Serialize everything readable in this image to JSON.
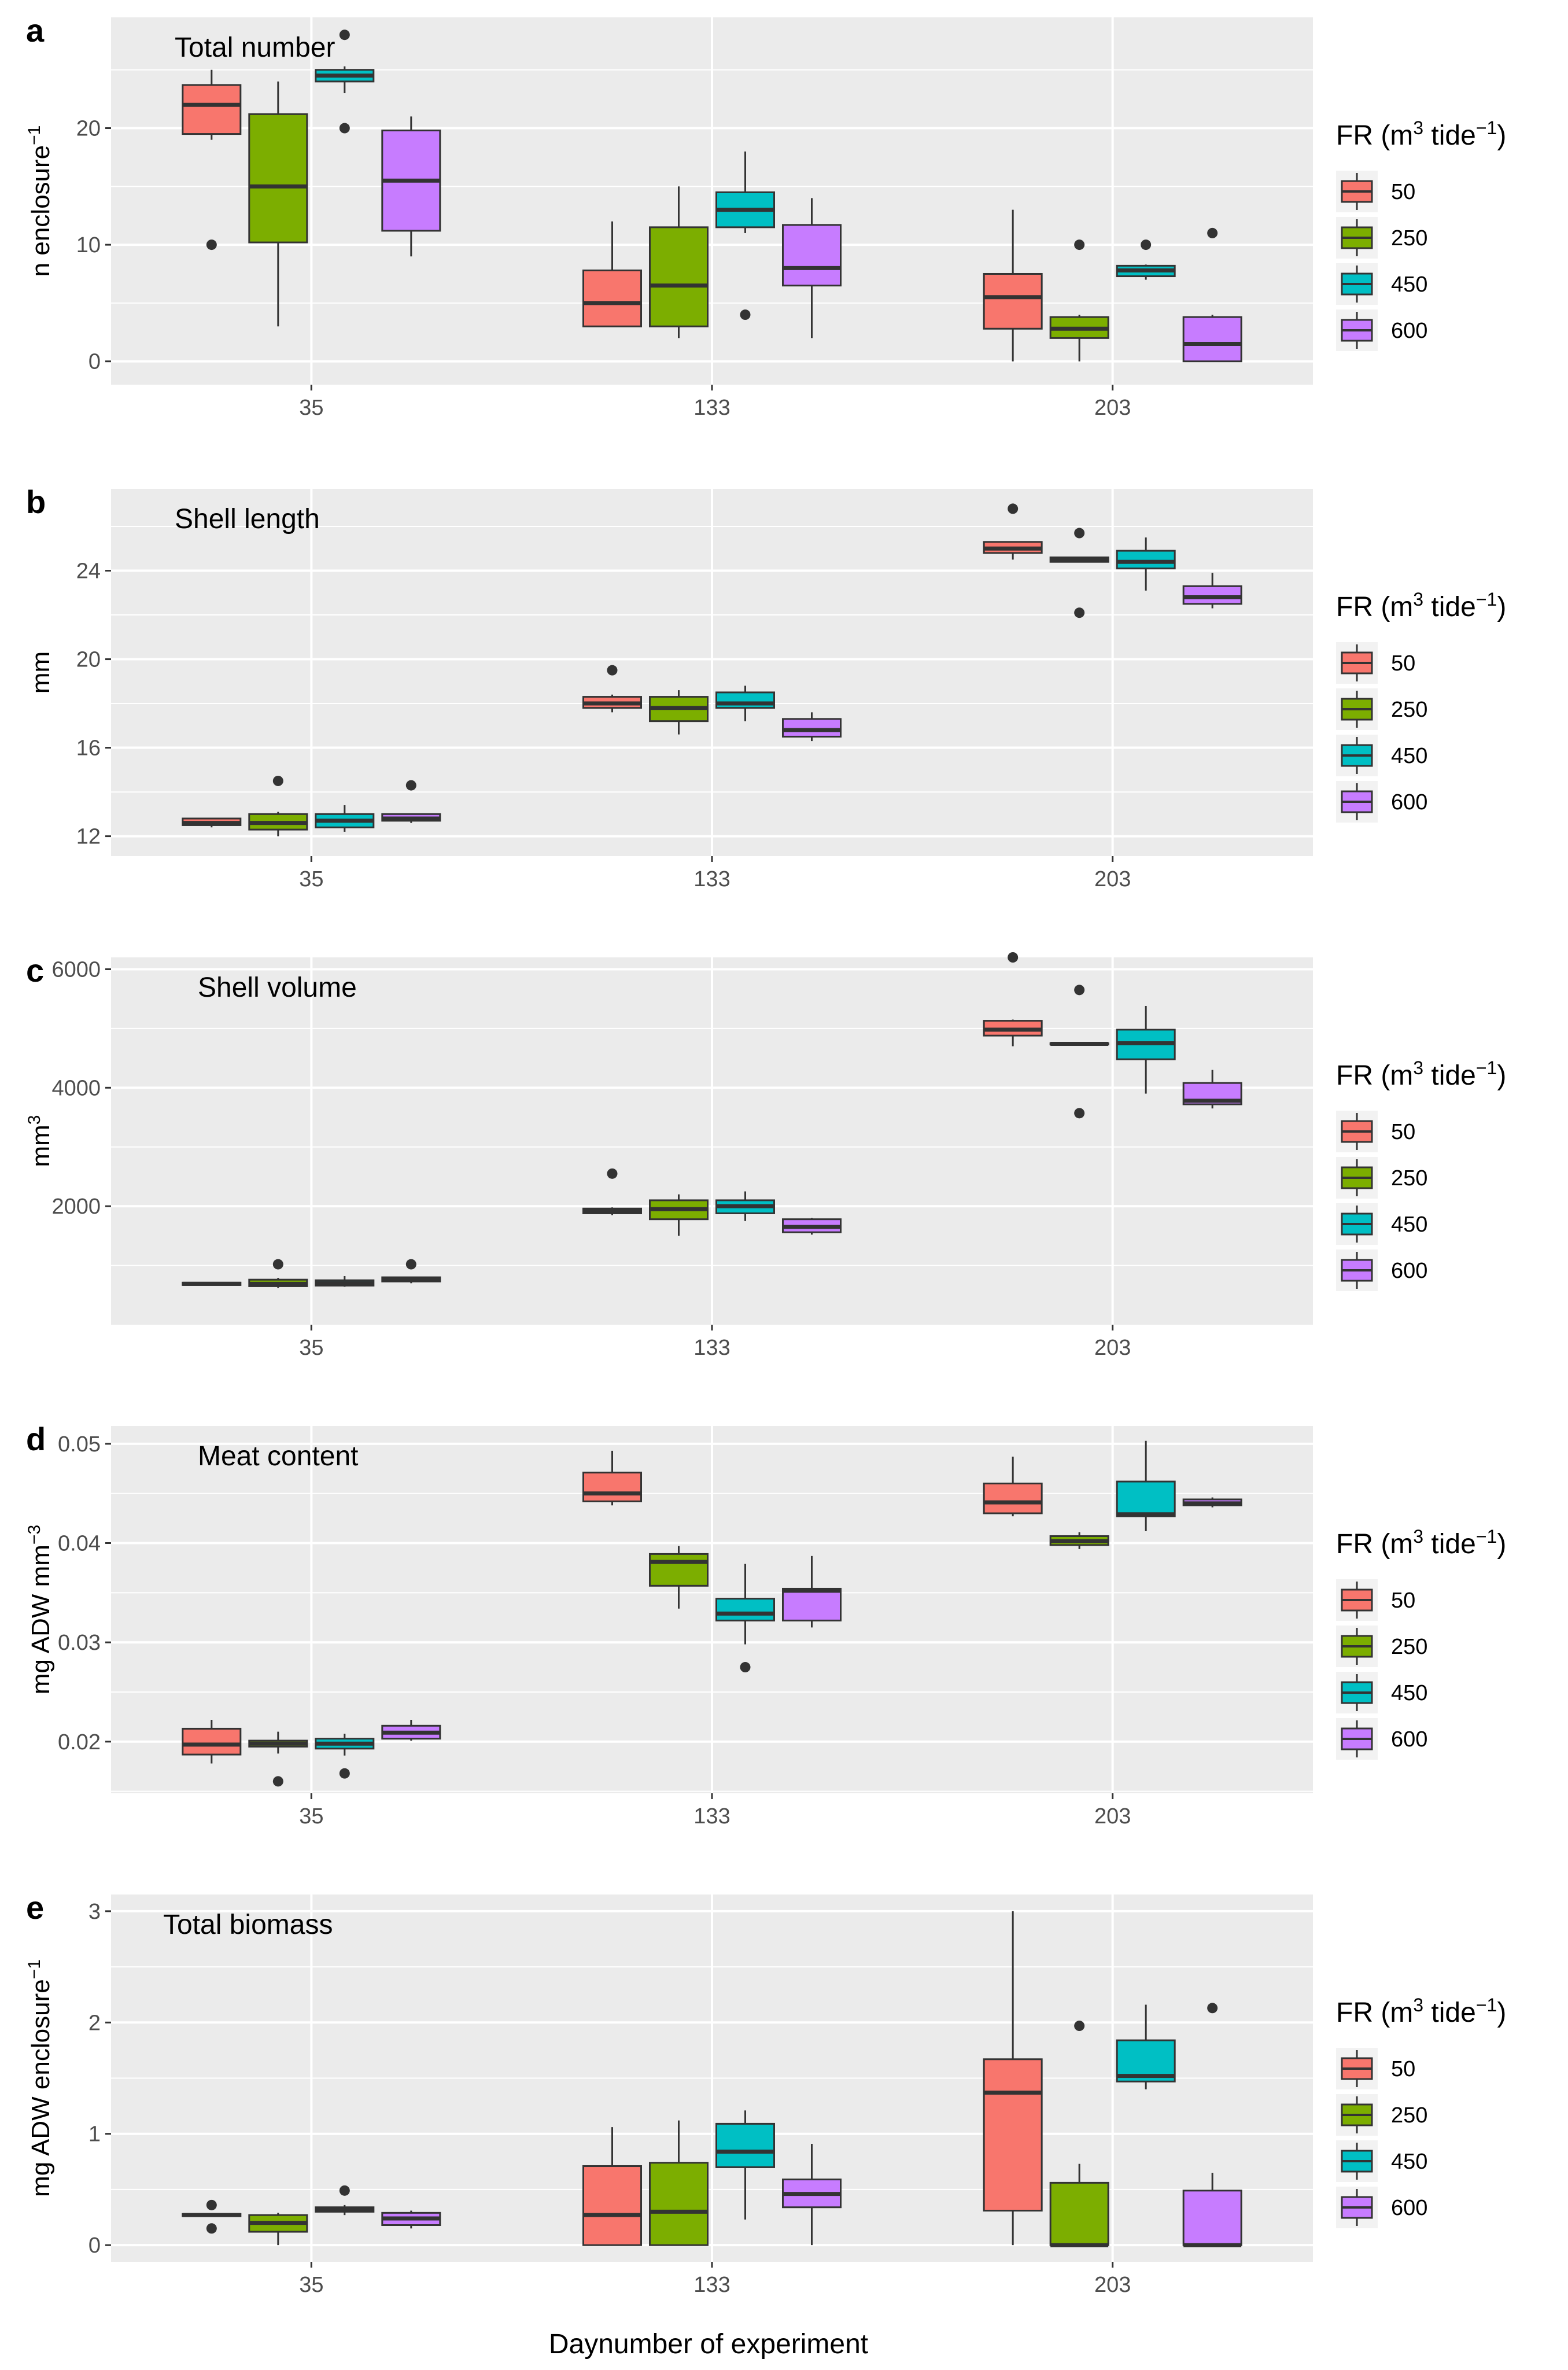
{
  "x_axis_label": "Daynumber of experiment",
  "legend": {
    "title_prefix": "FR (m",
    "title_sup": "3",
    "title_mid": " tide",
    "title_sup2": "−1",
    "title_suffix": ")",
    "labels": [
      "50",
      "250",
      "450",
      "600"
    ]
  },
  "colors": {
    "50": "#F8766D",
    "250": "#7CAE00",
    "450": "#00BFC4",
    "600": "#C77CFF",
    "panel_bg": "#EBEBEB",
    "grid": "#FFFFFF",
    "stroke": "#333333"
  },
  "chart_data": [
    {
      "type": "boxplot",
      "letter": "a",
      "title": "Total number",
      "ylabel": "n enclosure",
      "ylabel_sup": "−1",
      "ylim": [
        -2,
        29.5
      ],
      "yticks": [
        0,
        10,
        20
      ],
      "categories": [
        "35",
        "133",
        "203"
      ],
      "series": [
        {
          "name": "50",
          "boxes": [
            {
              "min": 19,
              "q1": 19.5,
              "median": 22,
              "q3": 23.7,
              "max": 25,
              "outliers": [
                10
              ]
            },
            {
              "min": 3,
              "q1": 3,
              "median": 5,
              "q3": 7.8,
              "max": 12,
              "outliers": []
            },
            {
              "min": 0,
              "q1": 2.8,
              "median": 5.5,
              "q3": 7.5,
              "max": 13,
              "outliers": []
            }
          ]
        },
        {
          "name": "250",
          "boxes": [
            {
              "min": 3,
              "q1": 10.2,
              "median": 15,
              "q3": 21.2,
              "max": 24,
              "outliers": []
            },
            {
              "min": 2,
              "q1": 3,
              "median": 6.5,
              "q3": 11.5,
              "max": 15,
              "outliers": []
            },
            {
              "min": 0,
              "q1": 2,
              "median": 2.8,
              "q3": 3.8,
              "max": 4,
              "outliers": [
                10
              ]
            }
          ]
        },
        {
          "name": "450",
          "boxes": [
            {
              "min": 23,
              "q1": 24,
              "median": 24.5,
              "q3": 25,
              "max": 25.3,
              "outliers": [
                28,
                20
              ]
            },
            {
              "min": 11,
              "q1": 11.5,
              "median": 13,
              "q3": 14.5,
              "max": 18,
              "outliers": [
                4
              ]
            },
            {
              "min": 7,
              "q1": 7.3,
              "median": 7.8,
              "q3": 8.2,
              "max": 8.3,
              "outliers": [
                10
              ]
            }
          ]
        },
        {
          "name": "600",
          "boxes": [
            {
              "min": 9,
              "q1": 11.2,
              "median": 15.5,
              "q3": 19.8,
              "max": 21,
              "outliers": []
            },
            {
              "min": 2,
              "q1": 6.5,
              "median": 8,
              "q3": 11.7,
              "max": 14,
              "outliers": []
            },
            {
              "min": 0,
              "q1": 0,
              "median": 1.5,
              "q3": 3.8,
              "max": 4,
              "outliers": [
                11
              ]
            }
          ]
        }
      ]
    },
    {
      "type": "boxplot",
      "letter": "b",
      "title": "Shell length",
      "ylabel": "mm",
      "ylabel_sup": "",
      "ylim": [
        11.1,
        27.7
      ],
      "yticks": [
        12,
        16,
        20,
        24
      ],
      "categories": [
        "35",
        "133",
        "203"
      ],
      "series": [
        {
          "name": "50",
          "boxes": [
            {
              "min": 12.4,
              "q1": 12.5,
              "median": 12.6,
              "q3": 12.8,
              "max": 12.8,
              "outliers": []
            },
            {
              "min": 17.6,
              "q1": 17.8,
              "median": 18,
              "q3": 18.3,
              "max": 18.4,
              "outliers": [
                19.5
              ]
            },
            {
              "min": 24.5,
              "q1": 24.8,
              "median": 25,
              "q3": 25.3,
              "max": 25.3,
              "outliers": [
                26.8
              ]
            }
          ]
        },
        {
          "name": "250",
          "boxes": [
            {
              "min": 12,
              "q1": 12.3,
              "median": 12.6,
              "q3": 13,
              "max": 13.1,
              "outliers": [
                14.5
              ]
            },
            {
              "min": 16.6,
              "q1": 17.2,
              "median": 17.8,
              "q3": 18.3,
              "max": 18.6,
              "outliers": []
            },
            {
              "min": 24.4,
              "q1": 24.4,
              "median": 24.5,
              "q3": 24.6,
              "max": 24.6,
              "outliers": [
                25.7,
                22.1
              ]
            }
          ]
        },
        {
          "name": "450",
          "boxes": [
            {
              "min": 12.2,
              "q1": 12.4,
              "median": 12.7,
              "q3": 13,
              "max": 13.4,
              "outliers": []
            },
            {
              "min": 17.2,
              "q1": 17.8,
              "median": 18,
              "q3": 18.5,
              "max": 18.8,
              "outliers": []
            },
            {
              "min": 23.1,
              "q1": 24.1,
              "median": 24.4,
              "q3": 24.9,
              "max": 25.5,
              "outliers": []
            }
          ]
        },
        {
          "name": "600",
          "boxes": [
            {
              "min": 12.6,
              "q1": 12.7,
              "median": 12.8,
              "q3": 13,
              "max": 13,
              "outliers": [
                14.3
              ]
            },
            {
              "min": 16.3,
              "q1": 16.5,
              "median": 16.8,
              "q3": 17.3,
              "max": 17.6,
              "outliers": []
            },
            {
              "min": 22.3,
              "q1": 22.5,
              "median": 22.8,
              "q3": 23.3,
              "max": 23.9,
              "outliers": []
            }
          ]
        }
      ]
    },
    {
      "type": "boxplot",
      "letter": "c",
      "title": "Shell volume",
      "ylabel": "mm",
      "ylabel_sup": "3",
      "ylim": [
        0,
        6200
      ],
      "yticks": [
        2000,
        4000,
        6000
      ],
      "categories": [
        "35",
        "133",
        "203"
      ],
      "series": [
        {
          "name": "50",
          "boxes": [
            {
              "min": 660,
              "q1": 670,
              "median": 690,
              "q3": 710,
              "max": 720,
              "outliers": []
            },
            {
              "min": 1850,
              "q1": 1880,
              "median": 1920,
              "q3": 1960,
              "max": 1980,
              "outliers": [
                2550
              ]
            },
            {
              "min": 4700,
              "q1": 4880,
              "median": 4980,
              "q3": 5130,
              "max": 5150,
              "outliers": [
                6200
              ]
            }
          ]
        },
        {
          "name": "250",
          "boxes": [
            {
              "min": 620,
              "q1": 650,
              "median": 690,
              "q3": 760,
              "max": 790,
              "outliers": [
                1020
              ]
            },
            {
              "min": 1500,
              "q1": 1780,
              "median": 1950,
              "q3": 2100,
              "max": 2200,
              "outliers": []
            },
            {
              "min": 4720,
              "q1": 4730,
              "median": 4740,
              "q3": 4750,
              "max": 4760,
              "outliers": [
                5650,
                3570
              ]
            }
          ]
        },
        {
          "name": "450",
          "boxes": [
            {
              "min": 640,
              "q1": 660,
              "median": 700,
              "q3": 750,
              "max": 820,
              "outliers": []
            },
            {
              "min": 1750,
              "q1": 1880,
              "median": 2000,
              "q3": 2100,
              "max": 2250,
              "outliers": []
            },
            {
              "min": 3900,
              "q1": 4480,
              "median": 4750,
              "q3": 4980,
              "max": 5380,
              "outliers": []
            }
          ]
        },
        {
          "name": "600",
          "boxes": [
            {
              "min": 700,
              "q1": 730,
              "median": 760,
              "q3": 800,
              "max": 810,
              "outliers": [
                1020
              ]
            },
            {
              "min": 1520,
              "q1": 1560,
              "median": 1650,
              "q3": 1780,
              "max": 1800,
              "outliers": []
            },
            {
              "min": 3650,
              "q1": 3720,
              "median": 3780,
              "q3": 4080,
              "max": 4300,
              "outliers": []
            }
          ]
        }
      ]
    },
    {
      "type": "boxplot",
      "letter": "d",
      "title": "Meat content",
      "ylabel": "mg ADW mm",
      "ylabel_sup": "−3",
      "ylim": [
        0.0148,
        0.0518
      ],
      "yticks": [
        0.02,
        0.03,
        0.04,
        0.05
      ],
      "categories": [
        "35",
        "133",
        "203"
      ],
      "series": [
        {
          "name": "50",
          "boxes": [
            {
              "min": 0.0178,
              "q1": 0.0187,
              "median": 0.0197,
              "q3": 0.0213,
              "max": 0.0222,
              "outliers": []
            },
            {
              "min": 0.0438,
              "q1": 0.0442,
              "median": 0.045,
              "q3": 0.0471,
              "max": 0.0493,
              "outliers": []
            },
            {
              "min": 0.0427,
              "q1": 0.043,
              "median": 0.0441,
              "q3": 0.046,
              "max": 0.0487,
              "outliers": []
            }
          ]
        },
        {
          "name": "250",
          "boxes": [
            {
              "min": 0.0188,
              "q1": 0.0195,
              "median": 0.0198,
              "q3": 0.0201,
              "max": 0.021,
              "outliers": [
                0.016
              ]
            },
            {
              "min": 0.0334,
              "q1": 0.0357,
              "median": 0.0381,
              "q3": 0.0389,
              "max": 0.0397,
              "outliers": []
            },
            {
              "min": 0.0394,
              "q1": 0.0398,
              "median": 0.0402,
              "q3": 0.0407,
              "max": 0.0411,
              "outliers": []
            }
          ]
        },
        {
          "name": "450",
          "boxes": [
            {
              "min": 0.0186,
              "q1": 0.0193,
              "median": 0.0198,
              "q3": 0.0203,
              "max": 0.0208,
              "outliers": [
                0.0168
              ]
            },
            {
              "min": 0.0298,
              "q1": 0.0322,
              "median": 0.0329,
              "q3": 0.0344,
              "max": 0.0379,
              "outliers": [
                0.0275
              ]
            },
            {
              "min": 0.0412,
              "q1": 0.0427,
              "median": 0.0429,
              "q3": 0.0462,
              "max": 0.0503,
              "outliers": []
            }
          ]
        },
        {
          "name": "600",
          "boxes": [
            {
              "min": 0.0201,
              "q1": 0.0203,
              "median": 0.0209,
              "q3": 0.0216,
              "max": 0.0222,
              "outliers": []
            },
            {
              "min": 0.0315,
              "q1": 0.0322,
              "median": 0.0352,
              "q3": 0.0354,
              "max": 0.0387,
              "outliers": []
            },
            {
              "min": 0.0436,
              "q1": 0.0438,
              "median": 0.044,
              "q3": 0.0444,
              "max": 0.0446,
              "outliers": []
            }
          ]
        }
      ]
    },
    {
      "type": "boxplot",
      "letter": "e",
      "title": "Total biomass",
      "ylabel": "mg ADW enclosure",
      "ylabel_sup": "−1",
      "ylim": [
        -0.15,
        3.15
      ],
      "yticks": [
        0,
        1,
        2,
        3
      ],
      "categories": [
        "35",
        "133",
        "203"
      ],
      "series": [
        {
          "name": "50",
          "boxes": [
            {
              "min": 0.26,
              "q1": 0.26,
              "median": 0.27,
              "q3": 0.28,
              "max": 0.28,
              "outliers": [
                0.36,
                0.15
              ]
            },
            {
              "min": 0,
              "q1": 0,
              "median": 0.27,
              "q3": 0.71,
              "max": 1.06,
              "outliers": []
            },
            {
              "min": 0,
              "q1": 0.31,
              "median": 1.37,
              "q3": 1.67,
              "max": 3.0,
              "outliers": []
            }
          ]
        },
        {
          "name": "250",
          "boxes": [
            {
              "min": 0,
              "q1": 0.12,
              "median": 0.2,
              "q3": 0.27,
              "max": 0.29,
              "outliers": []
            },
            {
              "min": 0,
              "q1": 0,
              "median": 0.3,
              "q3": 0.74,
              "max": 1.12,
              "outliers": []
            },
            {
              "min": 0,
              "q1": 0,
              "median": 0,
              "q3": 0.56,
              "max": 0.73,
              "outliers": [
                1.97
              ]
            }
          ]
        },
        {
          "name": "450",
          "boxes": [
            {
              "min": 0.27,
              "q1": 0.3,
              "median": 0.32,
              "q3": 0.34,
              "max": 0.36,
              "outliers": [
                0.49
              ]
            },
            {
              "min": 0.23,
              "q1": 0.7,
              "median": 0.84,
              "q3": 1.09,
              "max": 1.21,
              "outliers": []
            },
            {
              "min": 1.4,
              "q1": 1.47,
              "median": 1.52,
              "q3": 1.84,
              "max": 2.16,
              "outliers": []
            }
          ]
        },
        {
          "name": "600",
          "boxes": [
            {
              "min": 0.15,
              "q1": 0.18,
              "median": 0.24,
              "q3": 0.29,
              "max": 0.31,
              "outliers": []
            },
            {
              "min": 0,
              "q1": 0.34,
              "median": 0.46,
              "q3": 0.59,
              "max": 0.91,
              "outliers": []
            },
            {
              "min": 0,
              "q1": 0,
              "median": 0,
              "q3": 0.49,
              "max": 0.65,
              "outliers": [
                2.13
              ]
            }
          ]
        }
      ]
    }
  ]
}
